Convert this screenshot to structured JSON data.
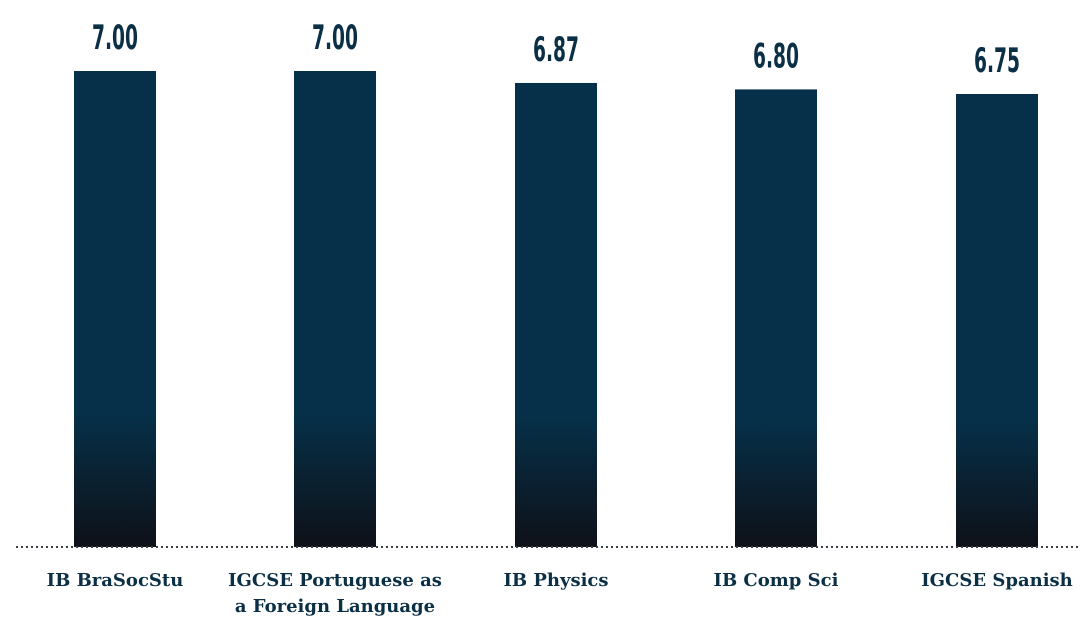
{
  "chart_data": {
    "type": "bar",
    "title": "",
    "xlabel": "",
    "ylabel": "",
    "categories": [
      [
        "IB BraSocStu"
      ],
      [
        "IGCSE Portuguese as",
        "a Foreign Language"
      ],
      [
        "IB Physics"
      ],
      [
        "IB Comp Sci"
      ],
      [
        "IGCSE Spanish"
      ]
    ],
    "values": [
      7.0,
      7.0,
      6.87,
      6.8,
      6.75
    ],
    "value_labels": [
      "7.00",
      "7.00",
      "6.87",
      "6.80",
      "6.75"
    ],
    "ylim": [
      0,
      7
    ],
    "grid": false,
    "legend": "none",
    "colors": {
      "bar_top": "#063049",
      "bar_bottom": "#0e1118",
      "text": "#0b3046",
      "baseline": "#3a3f47"
    }
  }
}
